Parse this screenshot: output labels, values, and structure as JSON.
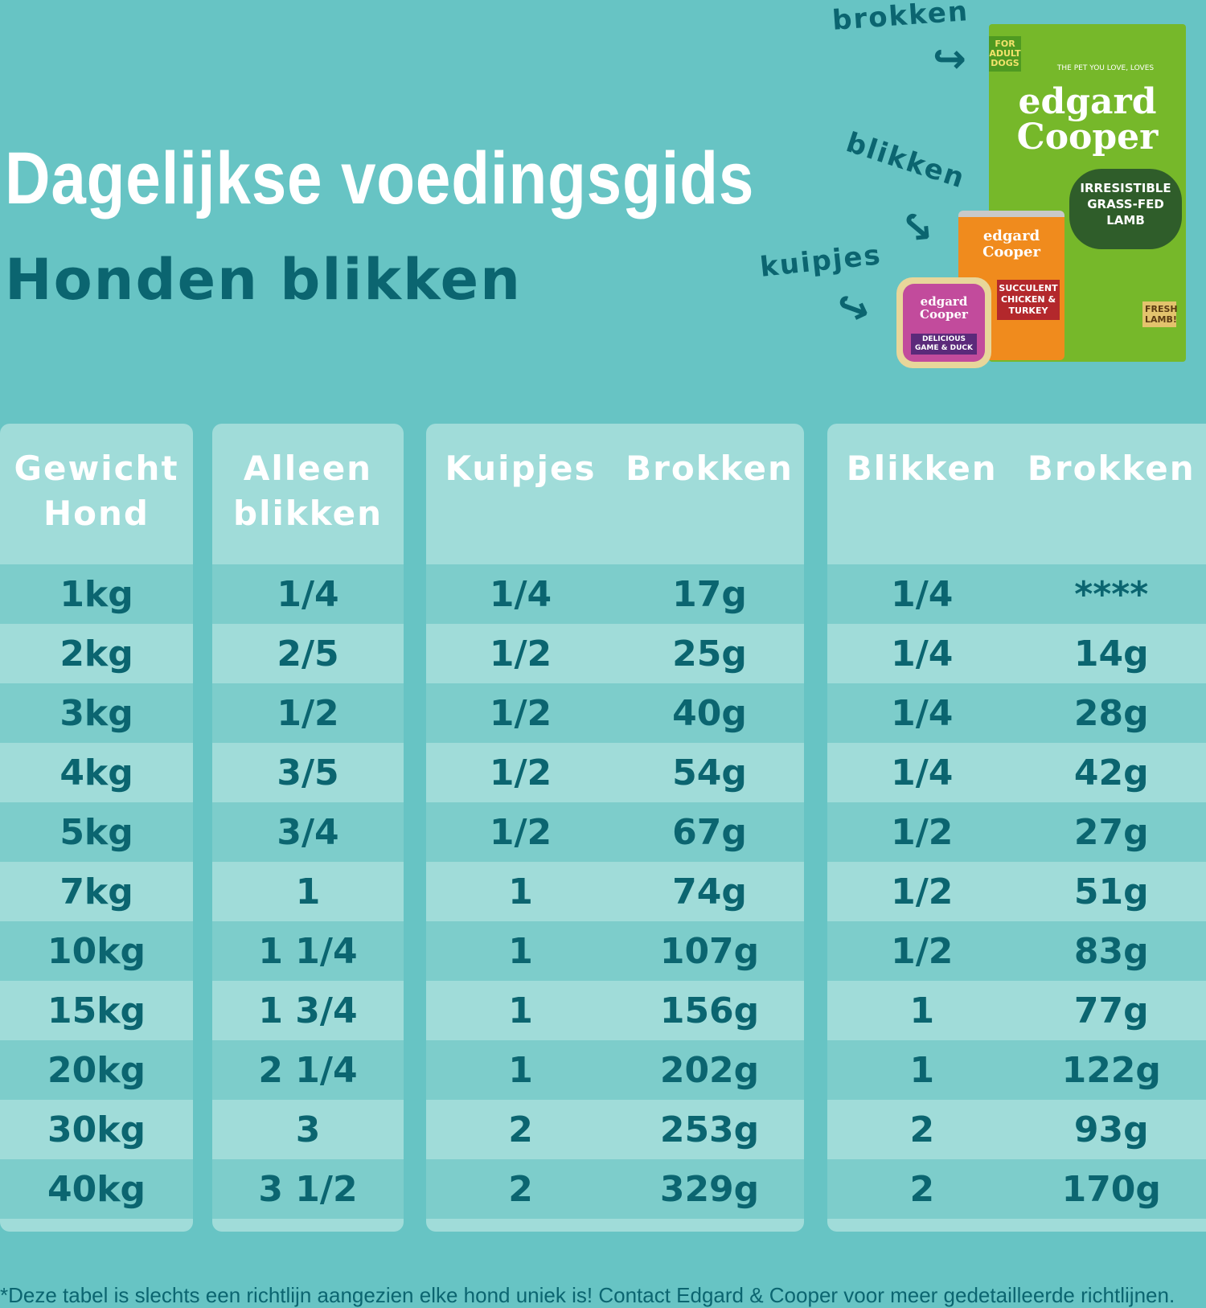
{
  "header": {
    "title": "Dagelijkse voedingsgids",
    "subtitle": "Honden blikken"
  },
  "labels": {
    "brokken": "brokken",
    "blikken": "blikken",
    "kuipjes": "kuipjes"
  },
  "products": {
    "bag": {
      "adult": "FOR ADULT DOGS",
      "tagline": "THE PET YOU LOVE, LOVES",
      "logo": "edgard Cooper",
      "name": "IRRESISTIBLE GRASS-FED LAMB",
      "fresh": "FRESH LAMB!"
    },
    "can": {
      "logo": "edgard Cooper",
      "name": "SUCCULENT CHICKEN & TURKEY"
    },
    "tray": {
      "logo": "edgard Cooper",
      "name": "DELICIOUS GAME & DUCK"
    }
  },
  "table": {
    "col1_header": "Gewicht Hond",
    "col2_header": "Alleen blikken",
    "col3_headers": [
      "Kuipjes",
      "Brokken"
    ],
    "col4_headers": [
      "Blikken",
      "Brokken"
    ],
    "rows": [
      {
        "weight": "1kg",
        "alleen": "1/4",
        "kuipjes": "1/4",
        "brokken1": "17g",
        "blikken": "1/4",
        "brokken2": "****"
      },
      {
        "weight": "2kg",
        "alleen": "2/5",
        "kuipjes": "1/2",
        "brokken1": "25g",
        "blikken": "1/4",
        "brokken2": "14g"
      },
      {
        "weight": "3kg",
        "alleen": "1/2",
        "kuipjes": "1/2",
        "brokken1": "40g",
        "blikken": "1/4",
        "brokken2": "28g"
      },
      {
        "weight": "4kg",
        "alleen": "3/5",
        "kuipjes": "1/2",
        "brokken1": "54g",
        "blikken": "1/4",
        "brokken2": "42g"
      },
      {
        "weight": "5kg",
        "alleen": "3/4",
        "kuipjes": "1/2",
        "brokken1": "67g",
        "blikken": "1/2",
        "brokken2": "27g"
      },
      {
        "weight": "7kg",
        "alleen": "1",
        "kuipjes": "1",
        "brokken1": "74g",
        "blikken": "1/2",
        "brokken2": "51g"
      },
      {
        "weight": "10kg",
        "alleen": "1 1/4",
        "kuipjes": "1",
        "brokken1": "107g",
        "blikken": "1/2",
        "brokken2": "83g"
      },
      {
        "weight": "15kg",
        "alleen": "1 3/4",
        "kuipjes": "1",
        "brokken1": "156g",
        "blikken": "1",
        "brokken2": "77g"
      },
      {
        "weight": "20kg",
        "alleen": "2 1/4",
        "kuipjes": "1",
        "brokken1": "202g",
        "blikken": "1",
        "brokken2": "122g"
      },
      {
        "weight": "30kg",
        "alleen": "3",
        "kuipjes": "2",
        "brokken1": "253g",
        "blikken": "2",
        "brokken2": "93g"
      },
      {
        "weight": "40kg",
        "alleen": "3 1/2",
        "kuipjes": "2",
        "brokken1": "329g",
        "blikken": "2",
        "brokken2": "170g"
      }
    ]
  },
  "footer": "*Deze tabel is slechts een richtlijn aangezien elke hond uniek is! Contact Edgard & Cooper voor meer gedetailleerde richtlijnen."
}
